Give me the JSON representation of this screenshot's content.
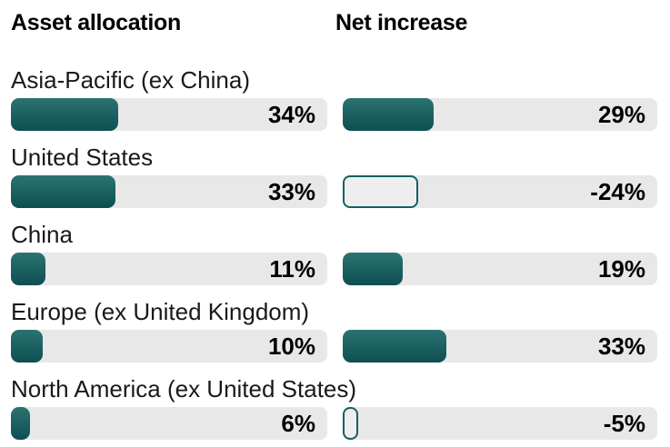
{
  "headers": {
    "left": "Asset allocation",
    "right": "Net increase"
  },
  "rows": [
    {
      "label": "Asia-Pacific (ex China)",
      "allocation": {
        "value": 34,
        "display": "34%"
      },
      "net_increase": {
        "value": 29,
        "display": "29%"
      }
    },
    {
      "label": "United States",
      "allocation": {
        "value": 33,
        "display": "33%"
      },
      "net_increase": {
        "value": -24,
        "display": "-24%"
      }
    },
    {
      "label": "China",
      "allocation": {
        "value": 11,
        "display": "11%"
      },
      "net_increase": {
        "value": 19,
        "display": "19%"
      }
    },
    {
      "label": "Europe (ex United Kingdom)",
      "allocation": {
        "value": 10,
        "display": "10%"
      },
      "net_increase": {
        "value": 33,
        "display": "33%"
      }
    },
    {
      "label": "North America (ex United States)",
      "allocation": {
        "value": 6,
        "display": "6%"
      },
      "net_increase": {
        "value": -5,
        "display": "-5%"
      }
    }
  ],
  "colors": {
    "bar_top": "#2a7472",
    "bar_bottom": "#0f4e52",
    "bar_outline": "#156061",
    "track": "#e8e8e8",
    "negative_fill": "#eeeeef",
    "text": "#1a1a1a",
    "heading": "#000000"
  },
  "chart_data": {
    "type": "bar",
    "orientation": "horizontal",
    "categories": [
      "Asia-Pacific (ex China)",
      "United States",
      "China",
      "Europe (ex United Kingdom)",
      "North America (ex United States)"
    ],
    "series": [
      {
        "name": "Asset allocation",
        "values": [
          34,
          33,
          11,
          10,
          6
        ]
      },
      {
        "name": "Net increase",
        "values": [
          29,
          -24,
          19,
          33,
          -5
        ]
      }
    ],
    "value_suffix": "%",
    "xlim": [
      0,
      100
    ],
    "grid": false,
    "legend_position": "column headers above each bar group",
    "data_labels": "bold, right-aligned inside gray track",
    "negative_style": "outlined hollow bar sized by absolute value"
  }
}
